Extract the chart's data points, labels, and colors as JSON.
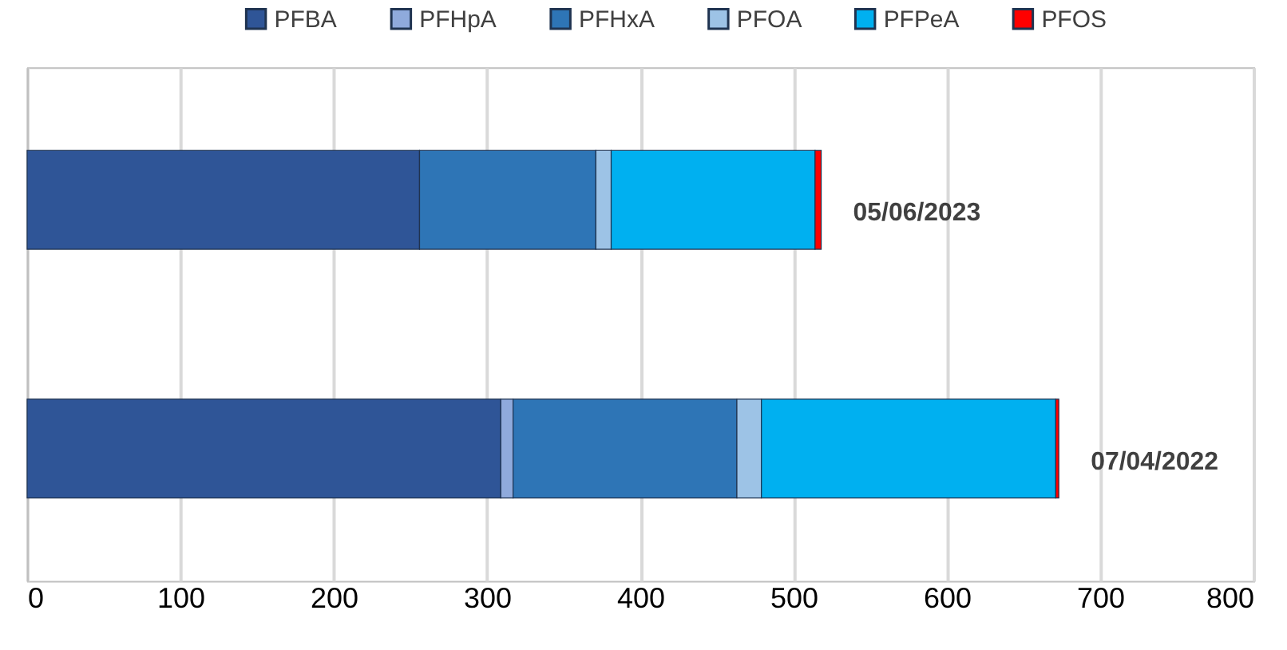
{
  "chart_data": {
    "type": "bar",
    "orientation": "horizontal",
    "stacked": true,
    "categories": [
      "05/06/2023",
      "07/04/2022"
    ],
    "series": [
      {
        "name": "PFBA",
        "color": "#2f5597",
        "values": [
          256,
          309
        ]
      },
      {
        "name": "PFHpA",
        "color": "#8faadc",
        "values": [
          0,
          8
        ]
      },
      {
        "name": "PFHxA",
        "color": "#2e75b6",
        "values": [
          115,
          146
        ]
      },
      {
        "name": "PFOA",
        "color": "#9dc3e6",
        "values": [
          10,
          16
        ]
      },
      {
        "name": "PFPeA",
        "color": "#00b0f0",
        "values": [
          133,
          192
        ]
      },
      {
        "name": "PFOS",
        "color": "#ff0000",
        "values": [
          4,
          2
        ]
      }
    ],
    "xlim": [
      0,
      800
    ],
    "xticks": [
      0,
      100,
      200,
      300,
      400,
      500,
      600,
      700,
      800
    ],
    "grid": "x",
    "legend": "top",
    "tick_labels": "x"
  }
}
